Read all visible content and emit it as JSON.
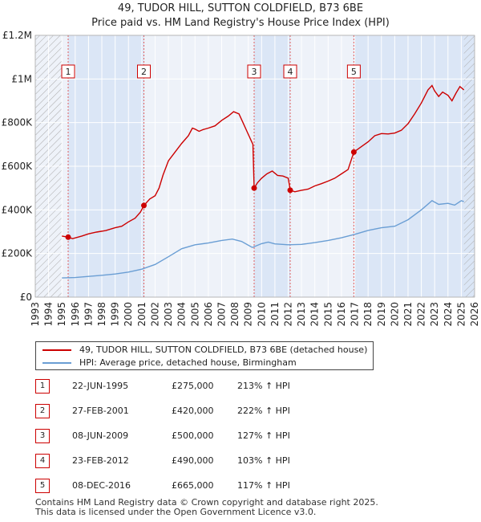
{
  "title_line1": "49, TUDOR HILL, SUTTON COLDFIELD, B73 6BE",
  "title_line2": "Price paid vs. HM Land Registry's House Price Index (HPI)",
  "colors": {
    "property": "#cc0000",
    "hpi": "#6a9ed4",
    "band": "#e8eef8",
    "hatch": "#999999",
    "grid": "#ffffff"
  },
  "chart_data": {
    "type": "line",
    "xlim": [
      1993,
      2026
    ],
    "ylim": [
      0,
      1200000
    ],
    "y_ticks": [
      {
        "value": 0,
        "label": "£0"
      },
      {
        "value": 200000,
        "label": "£200K"
      },
      {
        "value": 400000,
        "label": "£400K"
      },
      {
        "value": 600000,
        "label": "£600K"
      },
      {
        "value": 800000,
        "label": "£800K"
      },
      {
        "value": 1000000,
        "label": "£1M"
      },
      {
        "value": 1200000,
        "label": "£1.2M"
      }
    ],
    "x_ticks": [
      "1993",
      "1994",
      "1995",
      "1996",
      "1997",
      "1998",
      "1999",
      "2000",
      "2001",
      "2002",
      "2003",
      "2004",
      "2005",
      "2006",
      "2007",
      "2008",
      "2009",
      "2010",
      "2011",
      "2012",
      "2013",
      "2014",
      "2015",
      "2016",
      "2017",
      "2018",
      "2019",
      "2020",
      "2021",
      "2022",
      "2023",
      "2024",
      "2025",
      "2026"
    ],
    "data_range": [
      1995.0,
      2025.2
    ],
    "series": [
      {
        "name": "49, TUDOR HILL, SUTTON COLDFIELD, B73 6BE (detached house)",
        "color": "#cc0000",
        "points": [
          [
            1995.0,
            280000
          ],
          [
            1995.47,
            275000
          ],
          [
            1995.8,
            268000
          ],
          [
            1996.5,
            280000
          ],
          [
            1997.0,
            290000
          ],
          [
            1997.6,
            298000
          ],
          [
            1998.3,
            305000
          ],
          [
            1999.0,
            318000
          ],
          [
            1999.5,
            325000
          ],
          [
            2000.0,
            345000
          ],
          [
            2000.5,
            362000
          ],
          [
            2000.9,
            390000
          ],
          [
            2001.16,
            420000
          ],
          [
            2001.6,
            450000
          ],
          [
            2002.0,
            465000
          ],
          [
            2002.3,
            500000
          ],
          [
            2002.6,
            560000
          ],
          [
            2003.0,
            625000
          ],
          [
            2003.5,
            665000
          ],
          [
            2004.0,
            705000
          ],
          [
            2004.5,
            740000
          ],
          [
            2004.8,
            775000
          ],
          [
            2005.0,
            770000
          ],
          [
            2005.3,
            760000
          ],
          [
            2005.6,
            768000
          ],
          [
            2006.0,
            775000
          ],
          [
            2006.5,
            785000
          ],
          [
            2007.0,
            810000
          ],
          [
            2007.5,
            830000
          ],
          [
            2007.9,
            850000
          ],
          [
            2008.3,
            840000
          ],
          [
            2008.6,
            800000
          ],
          [
            2008.9,
            760000
          ],
          [
            2009.2,
            720000
          ],
          [
            2009.35,
            700000
          ],
          [
            2009.44,
            500000
          ],
          [
            2009.7,
            525000
          ],
          [
            2010.0,
            545000
          ],
          [
            2010.4,
            565000
          ],
          [
            2010.8,
            578000
          ],
          [
            2011.2,
            558000
          ],
          [
            2011.6,
            555000
          ],
          [
            2012.0,
            545000
          ],
          [
            2012.15,
            490000
          ],
          [
            2012.5,
            483000
          ],
          [
            2013.0,
            490000
          ],
          [
            2013.5,
            495000
          ],
          [
            2014.0,
            510000
          ],
          [
            2014.5,
            520000
          ],
          [
            2015.0,
            532000
          ],
          [
            2015.5,
            545000
          ],
          [
            2016.0,
            565000
          ],
          [
            2016.5,
            585000
          ],
          [
            2016.93,
            665000
          ],
          [
            2017.5,
            690000
          ],
          [
            2018.0,
            712000
          ],
          [
            2018.5,
            740000
          ],
          [
            2019.0,
            750000
          ],
          [
            2019.5,
            748000
          ],
          [
            2020.0,
            752000
          ],
          [
            2020.5,
            765000
          ],
          [
            2021.0,
            795000
          ],
          [
            2021.5,
            840000
          ],
          [
            2022.0,
            890000
          ],
          [
            2022.5,
            950000
          ],
          [
            2022.8,
            970000
          ],
          [
            2023.0,
            945000
          ],
          [
            2023.3,
            920000
          ],
          [
            2023.6,
            940000
          ],
          [
            2024.0,
            925000
          ],
          [
            2024.3,
            900000
          ],
          [
            2024.6,
            935000
          ],
          [
            2024.9,
            965000
          ],
          [
            2025.2,
            950000
          ]
        ]
      },
      {
        "name": "HPI: Average price, detached house, Birmingham",
        "color": "#6a9ed4",
        "points": [
          [
            1995.0,
            88000
          ],
          [
            1996.0,
            90000
          ],
          [
            1997.0,
            95000
          ],
          [
            1998.0,
            100000
          ],
          [
            1999.0,
            106000
          ],
          [
            2000.0,
            115000
          ],
          [
            2001.0,
            128000
          ],
          [
            2002.0,
            150000
          ],
          [
            2003.0,
            185000
          ],
          [
            2004.0,
            222000
          ],
          [
            2005.0,
            240000
          ],
          [
            2006.0,
            248000
          ],
          [
            2007.0,
            260000
          ],
          [
            2007.8,
            266000
          ],
          [
            2008.5,
            255000
          ],
          [
            2009.3,
            228000
          ],
          [
            2010.0,
            245000
          ],
          [
            2010.5,
            252000
          ],
          [
            2011.0,
            244000
          ],
          [
            2012.0,
            240000
          ],
          [
            2013.0,
            242000
          ],
          [
            2014.0,
            250000
          ],
          [
            2015.0,
            260000
          ],
          [
            2016.0,
            272000
          ],
          [
            2017.0,
            288000
          ],
          [
            2018.0,
            306000
          ],
          [
            2019.0,
            318000
          ],
          [
            2020.0,
            325000
          ],
          [
            2021.0,
            355000
          ],
          [
            2022.0,
            400000
          ],
          [
            2022.8,
            442000
          ],
          [
            2023.3,
            425000
          ],
          [
            2024.0,
            430000
          ],
          [
            2024.5,
            422000
          ],
          [
            2025.0,
            442000
          ],
          [
            2025.2,
            438000
          ]
        ]
      }
    ],
    "sales": [
      {
        "label": "1",
        "x": 1995.47,
        "y": 275000
      },
      {
        "label": "2",
        "x": 2001.16,
        "y": 420000
      },
      {
        "label": "3",
        "x": 2009.44,
        "y": 500000
      },
      {
        "label": "4",
        "x": 2012.15,
        "y": 490000
      },
      {
        "label": "5",
        "x": 2016.93,
        "y": 665000
      }
    ],
    "shaded_ranges": [
      [
        1995.47,
        2001.16
      ],
      [
        2009.44,
        2012.15
      ],
      [
        2016.93,
        2026.0
      ]
    ],
    "hatched_ranges": [
      [
        1993.0,
        1995.0
      ],
      [
        2025.2,
        2026.0
      ]
    ]
  },
  "legend": {
    "property": "49, TUDOR HILL, SUTTON COLDFIELD, B73 6BE (detached house)",
    "hpi": "HPI: Average price, detached house, Birmingham"
  },
  "table": [
    {
      "num": "1",
      "date": "22-JUN-1995",
      "price": "£275,000",
      "hpi": "213% ↑ HPI"
    },
    {
      "num": "2",
      "date": "27-FEB-2001",
      "price": "£420,000",
      "hpi": "222% ↑ HPI"
    },
    {
      "num": "3",
      "date": "08-JUN-2009",
      "price": "£500,000",
      "hpi": "127% ↑ HPI"
    },
    {
      "num": "4",
      "date": "23-FEB-2012",
      "price": "£490,000",
      "hpi": "103% ↑ HPI"
    },
    {
      "num": "5",
      "date": "08-DEC-2016",
      "price": "£665,000",
      "hpi": "117% ↑ HPI"
    }
  ],
  "footer_line1": "Contains HM Land Registry data © Crown copyright and database right 2025.",
  "footer_line2": "This data is licensed under the Open Government Licence v3.0."
}
